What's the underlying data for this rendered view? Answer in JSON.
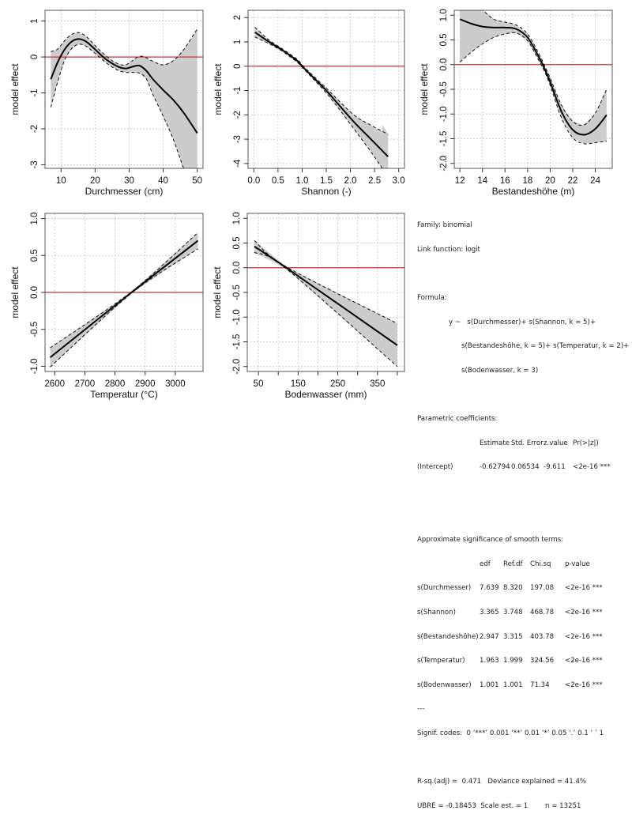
{
  "chart_data": [
    {
      "type": "line",
      "title": "",
      "xlabel": "Durchmesser (cm)",
      "ylabel": "model effect",
      "xlim": [
        5.3,
        51.7
      ],
      "ylim": [
        -3.1,
        1.3
      ],
      "xticks": [
        10,
        20,
        30,
        40,
        50
      ],
      "yticks": [
        -3,
        -2,
        -1,
        0,
        1
      ],
      "ytick_labels": [
        "-3",
        "-2",
        "-1",
        "0",
        "1"
      ],
      "grid": true,
      "reference_line": 0,
      "series": [
        {
          "name": "fit",
          "x": [
            7,
            9,
            11,
            13,
            15,
            17,
            19,
            21,
            23,
            25,
            27,
            29,
            31,
            33,
            35,
            37,
            40,
            43,
            46,
            50
          ],
          "y": [
            -0.62,
            -0.15,
            0.2,
            0.42,
            0.5,
            0.45,
            0.3,
            0.12,
            -0.05,
            -0.18,
            -0.28,
            -0.32,
            -0.27,
            -0.24,
            -0.38,
            -0.62,
            -0.92,
            -1.2,
            -1.55,
            -2.12
          ]
        },
        {
          "name": "upper",
          "x": [
            7,
            9,
            11,
            13,
            15,
            17,
            19,
            21,
            23,
            25,
            27,
            29,
            31,
            33,
            35,
            37,
            40,
            43,
            46,
            50
          ],
          "y": [
            0.15,
            0.22,
            0.45,
            0.62,
            0.68,
            0.6,
            0.42,
            0.22,
            0.05,
            -0.1,
            -0.2,
            -0.22,
            -0.1,
            0.02,
            -0.02,
            -0.12,
            -0.22,
            -0.1,
            0.2,
            0.78
          ]
        },
        {
          "name": "lower",
          "x": [
            7,
            9,
            11,
            13,
            15,
            17,
            19,
            21,
            23,
            25,
            27,
            29,
            31,
            33,
            35,
            37,
            40,
            43,
            46,
            47.5
          ],
          "y": [
            -1.4,
            -0.7,
            -0.1,
            0.22,
            0.35,
            0.32,
            0.18,
            0.02,
            -0.14,
            -0.28,
            -0.38,
            -0.43,
            -0.43,
            -0.45,
            -0.6,
            -1.05,
            -1.65,
            -2.3,
            -3.1,
            -3.4
          ]
        }
      ]
    },
    {
      "type": "line",
      "title": "",
      "xlabel": "Shannon (-)",
      "ylabel": "model effect",
      "xlim": [
        -0.12,
        3.12
      ],
      "ylim": [
        -4.2,
        2.3
      ],
      "xticks": [
        0.0,
        0.5,
        1.0,
        1.5,
        2.0,
        2.5,
        3.0
      ],
      "xtick_labels": [
        "0.0",
        "0.5",
        "1.0",
        "1.5",
        "2.0",
        "2.5",
        "3.0"
      ],
      "yticks": [
        -4,
        -3,
        -2,
        -1,
        0,
        1,
        2
      ],
      "ytick_labels": [
        "-4",
        "-3",
        "-2",
        "-1",
        "0",
        "1",
        "2"
      ],
      "grid": true,
      "reference_line": 0,
      "series": [
        {
          "name": "fit",
          "x": [
            0.02,
            0.3,
            0.6,
            0.9,
            1.0,
            1.2,
            1.5,
            1.8,
            2.1,
            2.4,
            2.78
          ],
          "y": [
            1.4,
            1.02,
            0.65,
            0.22,
            0.0,
            -0.4,
            -1.0,
            -1.68,
            -2.35,
            -2.95,
            -3.72
          ]
        },
        {
          "name": "upper",
          "x": [
            0.02,
            0.3,
            0.6,
            0.9,
            1.0,
            1.2,
            1.5,
            1.8,
            2.1,
            2.4,
            2.78
          ],
          "y": [
            1.6,
            1.1,
            0.7,
            0.28,
            0.05,
            -0.34,
            -0.9,
            -1.5,
            -2.05,
            -2.4,
            -2.8
          ]
        },
        {
          "name": "lower",
          "x": [
            0.02,
            0.3,
            0.6,
            0.9,
            1.0,
            1.2,
            1.5,
            1.8,
            2.1,
            2.4,
            2.66
          ],
          "y": [
            1.2,
            0.94,
            0.6,
            0.16,
            -0.05,
            -0.46,
            -1.1,
            -1.85,
            -2.65,
            -3.45,
            -4.2
          ]
        }
      ]
    },
    {
      "type": "line",
      "title": "",
      "xlabel": "Bestandeshöhe (m)",
      "ylabel": "model effect",
      "xlim": [
        11.5,
        25.5
      ],
      "ylim": [
        -2.1,
        1.1
      ],
      "xticks": [
        12,
        14,
        16,
        18,
        20,
        22,
        24
      ],
      "yticks": [
        -2.0,
        -1.5,
        -1.0,
        -0.5,
        0.0,
        0.5,
        1.0
      ],
      "ytick_labels": [
        "-2.0",
        "-1.5",
        "-1.0",
        "-0.5",
        "0.0",
        "0.5",
        "1.0"
      ],
      "grid": true,
      "reference_line": 0,
      "series": [
        {
          "name": "fit",
          "x": [
            12,
            13,
            14,
            15,
            16,
            17,
            18,
            19,
            19.5,
            20,
            21,
            22,
            23,
            24,
            25
          ],
          "y": [
            0.92,
            0.83,
            0.77,
            0.75,
            0.75,
            0.72,
            0.55,
            0.15,
            -0.08,
            -0.35,
            -0.95,
            -1.32,
            -1.42,
            -1.3,
            -1.02
          ]
        },
        {
          "name": "upper",
          "x": [
            12,
            13,
            14,
            15,
            16,
            17,
            18,
            19,
            19.5,
            20,
            21,
            22,
            23,
            24,
            25
          ],
          "y": [
            1.8,
            1.45,
            1.12,
            0.92,
            0.86,
            0.8,
            0.62,
            0.22,
            -0.02,
            -0.27,
            -0.82,
            -1.15,
            -1.22,
            -0.98,
            -0.5
          ]
        },
        {
          "name": "lower",
          "x": [
            12,
            13,
            14,
            15,
            16,
            17,
            18,
            19,
            19.5,
            20,
            21,
            22,
            23,
            24,
            25
          ],
          "y": [
            0.05,
            0.25,
            0.42,
            0.55,
            0.62,
            0.64,
            0.48,
            0.08,
            -0.14,
            -0.42,
            -1.08,
            -1.48,
            -1.6,
            -1.58,
            -1.55
          ]
        }
      ]
    },
    {
      "type": "line",
      "title": "",
      "xlabel": "Temperatur (°C)",
      "ylabel": "model effect",
      "xlim": [
        2568,
        3092
      ],
      "ylim": [
        -1.07,
        1.07
      ],
      "xticks": [
        2600,
        2700,
        2800,
        2900,
        3000
      ],
      "yticks": [
        -1.0,
        -0.5,
        0.0,
        0.5,
        1.0
      ],
      "ytick_labels": [
        "-1.0",
        "-0.5",
        "0.0",
        "0.5",
        "1.0"
      ],
      "grid": true,
      "reference_line": 0,
      "series": [
        {
          "name": "fit",
          "x": [
            2585,
            2855,
            3075
          ],
          "y": [
            -0.88,
            0.0,
            0.7
          ]
        },
        {
          "name": "upper",
          "x": [
            2585,
            2855,
            3075
          ],
          "y": [
            -0.75,
            0.01,
            0.81
          ]
        },
        {
          "name": "lower",
          "x": [
            2585,
            2855,
            3075
          ],
          "y": [
            -1.01,
            -0.01,
            0.59
          ]
        }
      ]
    },
    {
      "type": "line",
      "title": "",
      "xlabel": "Bodenwasser (mm)",
      "ylabel": "model effect",
      "xlim": [
        22,
        418
      ],
      "ylim": [
        -2.1,
        1.1
      ],
      "xticks": [
        50,
        100,
        150,
        200,
        250,
        300,
        350,
        400
      ],
      "xtick_labels": [
        "50",
        "",
        "150",
        "",
        "250",
        "",
        "350",
        ""
      ],
      "yticks": [
        -2.0,
        -1.5,
        -1.0,
        -0.5,
        0.0,
        0.5,
        1.0
      ],
      "ytick_labels": [
        "-2.0",
        "-1.5",
        "-1.0",
        "-0.5",
        "0.0",
        "0.5",
        "1.0"
      ],
      "grid": true,
      "reference_line": 0,
      "series": [
        {
          "name": "fit",
          "x": [
            40,
            120,
            400
          ],
          "y": [
            0.43,
            0.0,
            -1.57
          ]
        },
        {
          "name": "upper",
          "x": [
            40,
            120,
            400
          ],
          "y": [
            0.55,
            0.02,
            -1.13
          ]
        },
        {
          "name": "lower",
          "x": [
            40,
            120,
            400
          ],
          "y": [
            0.31,
            -0.02,
            -2.0
          ]
        }
      ]
    }
  ],
  "summary": {
    "family": "Family: binomial",
    "link": "Link function: logit",
    "formula_label": "Formula:",
    "formula_lines": [
      "y ~   s(Durchmesser)+ s(Shannon, k = 5)+",
      "s(Bestandeshöhe, k = 5)+ s(Temperatur, k = 2)+",
      "s(Bodenwasser, k = 3)"
    ],
    "parametric_title": "Parametric coefficients:",
    "parametric_headers": [
      "",
      "Estimate",
      "Std. Error",
      "z.value",
      "Pr(>|z|)"
    ],
    "parametric_rows": [
      [
        "(Intercept)",
        "-0.62794",
        "0.06534",
        "-9.611",
        "<2e-16 ***"
      ]
    ],
    "smooth_title": "Approximate significance of smooth terms:",
    "smooth_headers": [
      "",
      "edf",
      "Ref.df",
      "Chi.sq",
      "p-value"
    ],
    "smooth_rows": [
      [
        "s(Durchmesser)",
        "7.639",
        "8.320",
        "197.08",
        "<2e-16 ***"
      ],
      [
        "s(Shannon)",
        "3.365",
        "3.748",
        "468.78",
        "<2e-16 ***"
      ],
      [
        "s(Bestandeshöhe)",
        "2.947",
        "3.315",
        "403.78",
        "<2e-16 ***"
      ],
      [
        "s(Temperatur)",
        "1.963",
        "1.999",
        "324.56",
        "<2e-16 ***"
      ],
      [
        "s(Bodenwasser)",
        "1.001",
        "1.001",
        "71.34",
        "<2e-16 ***"
      ]
    ],
    "ellipsis": "---",
    "signif_codes": "Signif. codes:  0 ‘***’ 0.001 ‘**’ 0.01 ‘*’ 0.05 ‘.’ 0.1 ‘ ’ 1",
    "rsq_line": "R-sq.(adj) =  0.471   Deviance explained = 41.4%",
    "ubre_line": "UBRE = -0.18453  Scale est. = 1        n = 13251"
  },
  "colors": {
    "fit": "#000000",
    "band": "#cccccc",
    "reference": "#cc3333",
    "grid": "#d0d0d0",
    "box": "#555555"
  }
}
